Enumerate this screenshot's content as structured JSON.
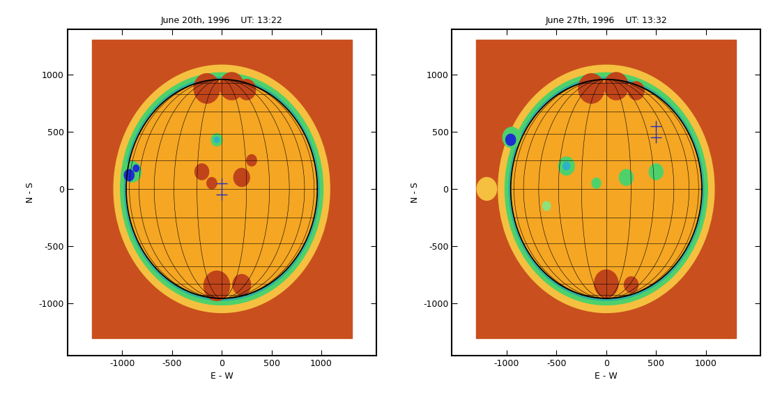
{
  "chart_data": [
    {
      "type": "image",
      "title": "June 20th, 1996    UT: 13:22",
      "xlabel": "E - W",
      "ylabel": "N - S",
      "xlim": [
        -1550,
        1550
      ],
      "ylim": [
        -1460,
        1400
      ],
      "xticks": [
        -1000,
        -500,
        0,
        500,
        1000
      ],
      "yticks": [
        -1000,
        -500,
        0,
        500,
        1000
      ],
      "disk_radius": 960,
      "regions": [
        {
          "x": -150,
          "y": 880,
          "r": 130,
          "color": "#c0441a"
        },
        {
          "x": 100,
          "y": 900,
          "r": 120,
          "color": "#c0441a"
        },
        {
          "x": 250,
          "y": 870,
          "r": 90,
          "color": "#c0441a"
        },
        {
          "x": -50,
          "y": -850,
          "r": 130,
          "color": "#c0441a"
        },
        {
          "x": 200,
          "y": -840,
          "r": 90,
          "color": "#c0441a"
        },
        {
          "x": -200,
          "y": 150,
          "r": 70,
          "color": "#c0441a"
        },
        {
          "x": -100,
          "y": 50,
          "r": 50,
          "color": "#c0441a"
        },
        {
          "x": 200,
          "y": 100,
          "r": 80,
          "color": "#c0441a"
        },
        {
          "x": 300,
          "y": 250,
          "r": 50,
          "color": "#c0441a"
        },
        {
          "x": -50,
          "y": 430,
          "r": 55,
          "color": "#4fd16a"
        },
        {
          "x": -50,
          "y": 430,
          "r": 25,
          "color": "#2cb3c8"
        },
        {
          "x": -900,
          "y": 150,
          "r": 90,
          "color": "#4fd16a"
        },
        {
          "x": -930,
          "y": 120,
          "r": 50,
          "color": "#1e2fd0"
        },
        {
          "x": -860,
          "y": 180,
          "r": 30,
          "color": "#1e2fd0"
        }
      ],
      "crosses": [
        {
          "x": 0,
          "y": 50
        },
        {
          "x": 0,
          "y": -50
        }
      ]
    },
    {
      "type": "image",
      "title": "June 27th, 1996    UT: 13:32",
      "xlabel": "E - W",
      "ylabel": "N - S",
      "xlim": [
        -1550,
        1550
      ],
      "ylim": [
        -1460,
        1400
      ],
      "xticks": [
        -1000,
        -500,
        0,
        500,
        1000
      ],
      "yticks": [
        -1000,
        -500,
        0,
        500,
        1000
      ],
      "disk_radius": 960,
      "regions": [
        {
          "x": -150,
          "y": 880,
          "r": 130,
          "color": "#c0441a"
        },
        {
          "x": 100,
          "y": 900,
          "r": 120,
          "color": "#c0441a"
        },
        {
          "x": 300,
          "y": 860,
          "r": 80,
          "color": "#c0441a"
        },
        {
          "x": 0,
          "y": -830,
          "r": 120,
          "color": "#c0441a"
        },
        {
          "x": 250,
          "y": -840,
          "r": 70,
          "color": "#c0441a"
        },
        {
          "x": -950,
          "y": 450,
          "r": 90,
          "color": "#4fd16a"
        },
        {
          "x": -960,
          "y": 430,
          "r": 50,
          "color": "#1e2fd0"
        },
        {
          "x": -400,
          "y": 200,
          "r": 80,
          "color": "#4fd16a"
        },
        {
          "x": -400,
          "y": 200,
          "r": 35,
          "color": "#2cb3c8"
        },
        {
          "x": 200,
          "y": 100,
          "r": 70,
          "color": "#4fd16a"
        },
        {
          "x": 500,
          "y": 150,
          "r": 70,
          "color": "#4fd16a"
        },
        {
          "x": -100,
          "y": 50,
          "r": 45,
          "color": "#4fd16a"
        },
        {
          "x": -600,
          "y": -150,
          "r": 40,
          "color": "#8fe07a"
        },
        {
          "x": -1200,
          "y": 0,
          "r": 100,
          "color": "#f5c040"
        }
      ],
      "crosses": [
        {
          "x": 500,
          "y": 550
        },
        {
          "x": 500,
          "y": 450
        }
      ]
    }
  ]
}
